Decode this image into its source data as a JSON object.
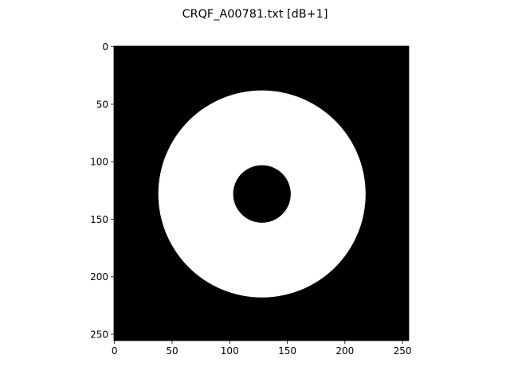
{
  "chart_data": {
    "type": "heatmap",
    "title": "CRQF_A00781.txt [dB+1]",
    "xlabel": "",
    "ylabel": "",
    "image_size": [
      256,
      256
    ],
    "xlim": [
      -0.5,
      255.5
    ],
    "ylim": [
      255.5,
      -0.5
    ],
    "xticks": [
      0,
      50,
      100,
      150,
      200,
      250
    ],
    "yticks": [
      0,
      50,
      100,
      150,
      200,
      250
    ],
    "xtick_labels": [
      "0",
      "50",
      "100",
      "150",
      "200",
      "250"
    ],
    "ytick_labels": [
      "0",
      "50",
      "100",
      "150",
      "200",
      "250"
    ],
    "grid": false,
    "colormap": [
      "#000000",
      "#ffffff"
    ],
    "shapes": [
      {
        "kind": "annulus",
        "center": [
          128,
          128
        ],
        "outer_radius": 90,
        "inner_radius": 25,
        "value": 1
      }
    ],
    "background_value": 0
  }
}
